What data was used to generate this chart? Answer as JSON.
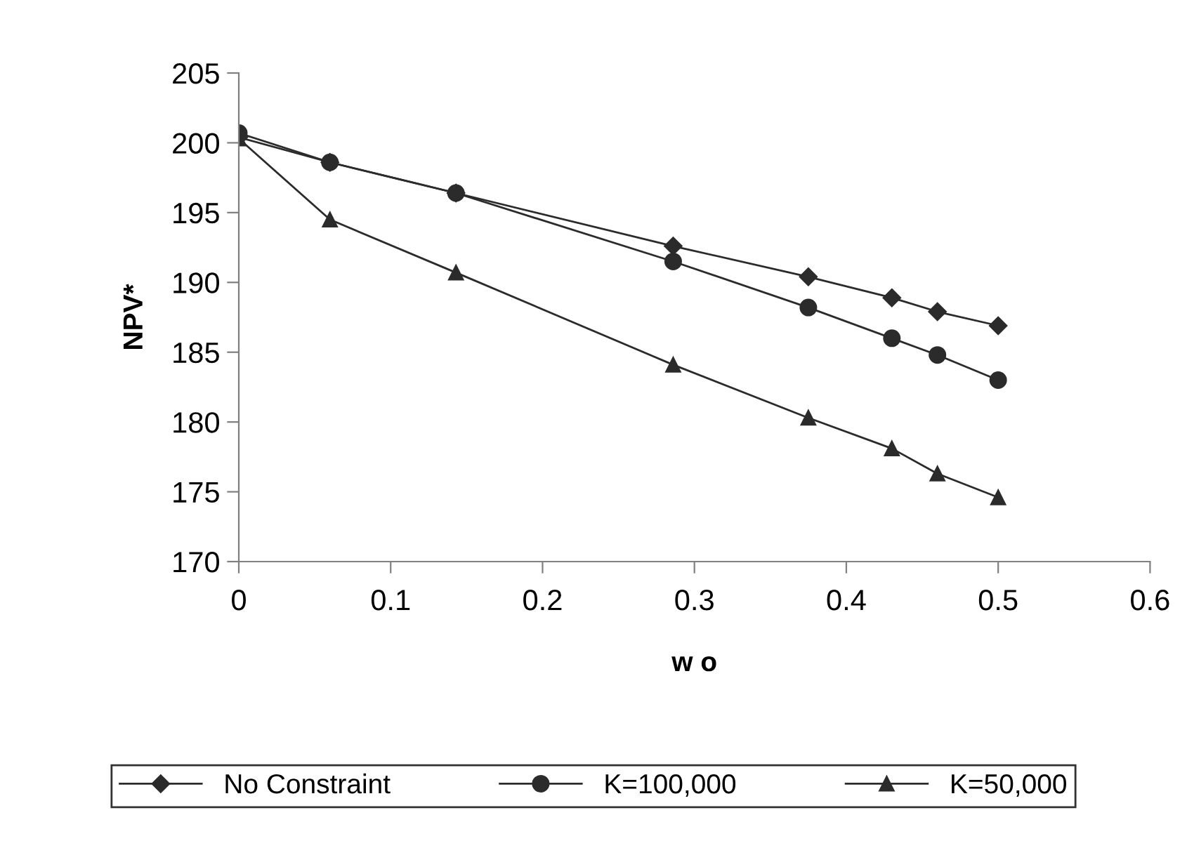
{
  "chart_data": {
    "type": "line",
    "xlabel": "w o",
    "ylabel": "NPV*",
    "x": [
      0,
      0.06,
      0.143,
      0.286,
      0.375,
      0.43,
      0.46,
      0.5
    ],
    "series": [
      {
        "name": "No Constraint",
        "color": "#2b2b2b",
        "marker": "diamond",
        "values": [
          200.4,
          198.6,
          196.4,
          192.6,
          190.4,
          188.9,
          187.9,
          186.9
        ]
      },
      {
        "name": "K=100,000",
        "color": "#2b2b2b",
        "marker": "circle",
        "values": [
          200.7,
          198.6,
          196.4,
          191.5,
          188.2,
          186.0,
          184.8,
          183.0
        ]
      },
      {
        "name": "K=50,000",
        "color": "#2b2b2b",
        "marker": "triangle",
        "values": [
          200.3,
          194.5,
          190.7,
          184.1,
          180.3,
          178.1,
          176.3,
          174.6
        ]
      }
    ],
    "xlim": [
      0,
      0.6
    ],
    "xticks": [
      0,
      0.1,
      0.2,
      0.3,
      0.4,
      0.5,
      0.6
    ],
    "ylim": [
      170,
      205
    ],
    "yticks": [
      170,
      175,
      180,
      185,
      190,
      195,
      200,
      205
    ],
    "grid": false,
    "legend": "bottom",
    "line_style": "solid"
  }
}
